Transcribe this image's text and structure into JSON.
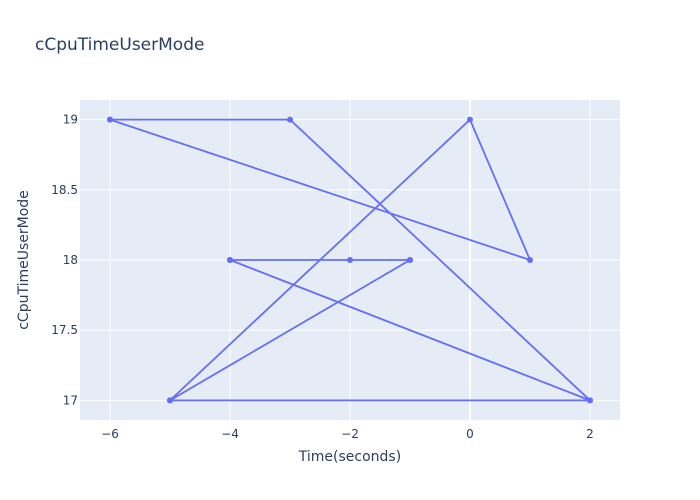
{
  "chart_data": {
    "type": "line",
    "title": "cCpuTimeUserMode",
    "xlabel": "Time(seconds)",
    "ylabel": "cCpuTimeUserMode",
    "x": [
      -6,
      -3,
      2,
      -5,
      -1,
      -4,
      -2,
      -1,
      -4,
      2,
      -5,
      0,
      1,
      -6
    ],
    "y": [
      19,
      19,
      17,
      17,
      18,
      18,
      18,
      18,
      18,
      17,
      17,
      19,
      18,
      19
    ],
    "xlim": [
      -6.5,
      2.5
    ],
    "ylim": [
      16.86,
      19.14
    ],
    "xticks": [
      -6,
      -4,
      -2,
      0,
      2
    ],
    "xtick_labels": [
      "−6",
      "−4",
      "−2",
      "0",
      "2"
    ],
    "yticks": [
      17,
      17.5,
      18,
      18.5,
      19
    ],
    "ytick_labels": [
      "17",
      "17.5",
      "18",
      "18.5",
      "19"
    ],
    "grid": true,
    "colors": {
      "line": "#636efa",
      "plot_background": "#e5ecf6",
      "paper_background": "#ffffff",
      "grid": "#ffffff",
      "text": "#2a3f5f"
    }
  }
}
